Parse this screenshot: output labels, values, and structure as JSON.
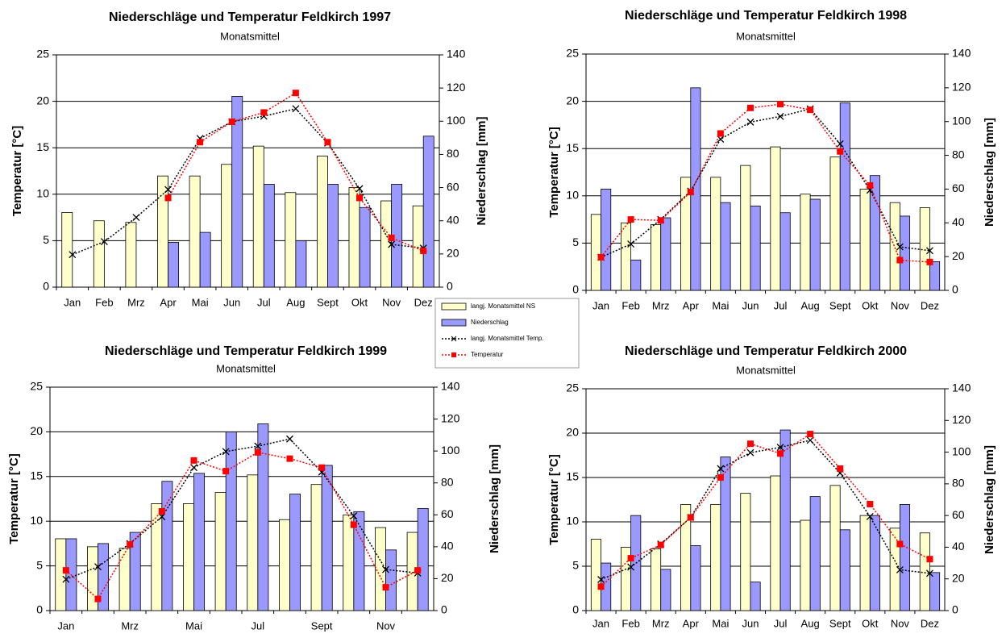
{
  "chart_data": [
    {
      "type": "bar",
      "title": "Niederschläge und Temperatur Feldkirch 1997",
      "subtitle": "Monatsmittel",
      "y_label": "Temperatur [°C]",
      "y2_label": "Niederschlag [mm]",
      "categories": [
        "Jan",
        "Feb",
        "Mrz",
        "Apr",
        "Mai",
        "Jun",
        "Jul",
        "Aug",
        "Sept",
        "Okt",
        "Nov",
        "Dez"
      ],
      "ylim": [
        0,
        25
      ],
      "yticks": [
        0,
        5,
        10,
        15,
        20,
        25
      ],
      "y2lim": [
        0,
        140
      ],
      "y2ticks": [
        0,
        20,
        40,
        60,
        80,
        100,
        120,
        140
      ],
      "grid": true,
      "series": [
        {
          "name": "langj. Monatsmittel NS",
          "color": "#ffffcc",
          "mark": "bar",
          "axis": "y2",
          "values": [
            45,
            40,
            39,
            67,
            67,
            74,
            85,
            57,
            79,
            60,
            52,
            49
          ]
        },
        {
          "name": "Niederschlag",
          "color": "#9999ff",
          "mark": "bar",
          "axis": "y2",
          "values": [
            null,
            null,
            null,
            27,
            33,
            115,
            62,
            28,
            62,
            48,
            62,
            91
          ]
        },
        {
          "name": "langj. Monatsmittel Temp.",
          "color": "#000000",
          "mark": "line",
          "marker": "x",
          "values": [
            3.5,
            4.9,
            7.5,
            10.5,
            16,
            17.8,
            18.4,
            19.2,
            15.5,
            10.6,
            4.6,
            4.2
          ]
        },
        {
          "name": "Temperatur",
          "color": "#ff0000",
          "mark": "line",
          "marker": "square",
          "values": [
            null,
            null,
            null,
            9.6,
            15.6,
            17.8,
            18.8,
            20.9,
            15.6,
            9.6,
            5.3,
            3.9
          ]
        }
      ]
    },
    {
      "type": "bar",
      "title": "Niederschläge und Temperatur Feldkirch 1998",
      "subtitle": "Monatsmittel",
      "y_label": "Temperatur [°C]",
      "y2_label": "Niederschlag [mm]",
      "categories": [
        "Jan",
        "Feb",
        "Mrz",
        "Apr",
        "Mai",
        "Jun",
        "Jul",
        "Aug",
        "Sept",
        "Okt",
        "Nov",
        "Dez"
      ],
      "ylim": [
        0,
        25
      ],
      "yticks": [
        0,
        5,
        10,
        15,
        20,
        25
      ],
      "y2lim": [
        0,
        140
      ],
      "y2ticks": [
        0,
        20,
        40,
        60,
        80,
        100,
        120,
        140
      ],
      "grid": true,
      "series": [
        {
          "name": "langj. Monatsmittel NS",
          "color": "#ffffcc",
          "mark": "bar",
          "axis": "y2",
          "values": [
            45,
            40,
            39,
            67,
            67,
            74,
            85,
            57,
            79,
            60,
            52,
            49
          ]
        },
        {
          "name": "Niederschlag",
          "color": "#9999ff",
          "mark": "bar",
          "axis": "y2",
          "values": [
            60,
            18,
            43,
            120,
            52,
            50,
            46,
            54,
            111,
            68,
            44,
            17
          ]
        },
        {
          "name": "langj. Monatsmittel Temp.",
          "color": "#000000",
          "mark": "line",
          "marker": "x",
          "values": [
            3.5,
            4.9,
            7.5,
            10.5,
            16,
            17.8,
            18.4,
            19.2,
            15.5,
            10.6,
            4.6,
            4.2
          ]
        },
        {
          "name": "Temperatur",
          "color": "#ff0000",
          "mark": "line",
          "marker": "square",
          "values": [
            3.5,
            7.5,
            7.4,
            10.4,
            16.6,
            19.3,
            19.7,
            19.1,
            14.7,
            11.1,
            3.2,
            3.0
          ]
        }
      ]
    },
    {
      "type": "bar",
      "title": "Niederschläge und Temperatur Feldkirch 1999",
      "subtitle": "Monatsmittel",
      "y_label": "Temperatur [°C]",
      "y2_label": "Niederschlag [mm]",
      "categories": [
        "Jan",
        null,
        "Mrz",
        null,
        "Mai",
        null,
        "Jul",
        null,
        "Sept",
        null,
        "Nov",
        null
      ],
      "ylim": [
        0,
        25
      ],
      "yticks": [
        0,
        5,
        10,
        15,
        20,
        25
      ],
      "y2lim": [
        0,
        140
      ],
      "y2ticks": [
        0,
        20,
        40,
        60,
        80,
        100,
        120,
        140
      ],
      "grid": true,
      "series": [
        {
          "name": "langj. Monatsmittel NS",
          "color": "#ffffcc",
          "mark": "bar",
          "axis": "y2",
          "values": [
            45,
            40,
            39,
            67,
            67,
            74,
            85,
            57,
            79,
            60,
            52,
            49
          ]
        },
        {
          "name": "Niederschlag",
          "color": "#9999ff",
          "mark": "bar",
          "axis": "y2",
          "values": [
            45,
            42,
            49,
            81,
            86,
            112,
            117,
            73,
            91,
            62,
            38,
            64
          ]
        },
        {
          "name": "langj. Monatsmittel Temp.",
          "color": "#000000",
          "mark": "line",
          "marker": "x",
          "values": [
            3.5,
            4.9,
            7.5,
            10.5,
            16,
            17.8,
            18.4,
            19.2,
            15.5,
            10.6,
            4.6,
            4.2
          ]
        },
        {
          "name": "Temperatur",
          "color": "#ff0000",
          "mark": "line",
          "marker": "square",
          "values": [
            4.5,
            1.3,
            7.4,
            11.1,
            16.8,
            15.6,
            17.7,
            17.0,
            16.0,
            9.6,
            2.6,
            4.5
          ]
        }
      ]
    },
    {
      "type": "bar",
      "title": "Niederschläge und Temperatur Feldkirch 2000",
      "subtitle": "Monatsmittel",
      "y_label": "Temperatur [°C]",
      "y2_label": "Niederschlag [mm]",
      "categories": [
        "Jan",
        "Feb",
        "Mrz",
        "Apr",
        "Mai",
        "Jun",
        "Jul",
        "Aug",
        "Sept",
        "Okt",
        "Nov",
        "Dez"
      ],
      "ylim": [
        0,
        25
      ],
      "yticks": [
        0,
        5,
        10,
        15,
        20,
        25
      ],
      "y2lim": [
        0,
        140
      ],
      "y2ticks": [
        0,
        20,
        40,
        60,
        80,
        100,
        120,
        140
      ],
      "grid": true,
      "series": [
        {
          "name": "langj. Monatsmittel NS",
          "color": "#ffffcc",
          "mark": "bar",
          "axis": "y2",
          "values": [
            45,
            40,
            39,
            67,
            67,
            74,
            85,
            57,
            79,
            60,
            52,
            49
          ]
        },
        {
          "name": "Niederschlag",
          "color": "#9999ff",
          "mark": "bar",
          "axis": "y2",
          "values": [
            30,
            60,
            26,
            41,
            97,
            18,
            114,
            72,
            51,
            60,
            67,
            24
          ]
        },
        {
          "name": "langj. Monatsmittel Temp.",
          "color": "#000000",
          "mark": "line",
          "marker": "x",
          "values": [
            3.5,
            4.9,
            7.5,
            10.5,
            16,
            17.8,
            18.4,
            19.2,
            15.5,
            10.6,
            4.6,
            4.2
          ]
        },
        {
          "name": "Temperatur",
          "color": "#ff0000",
          "mark": "line",
          "marker": "square",
          "values": [
            2.7,
            5.9,
            7.4,
            10.5,
            15.0,
            18.8,
            17.7,
            19.9,
            16.0,
            12.0,
            7.5,
            5.8
          ]
        }
      ]
    }
  ]
}
